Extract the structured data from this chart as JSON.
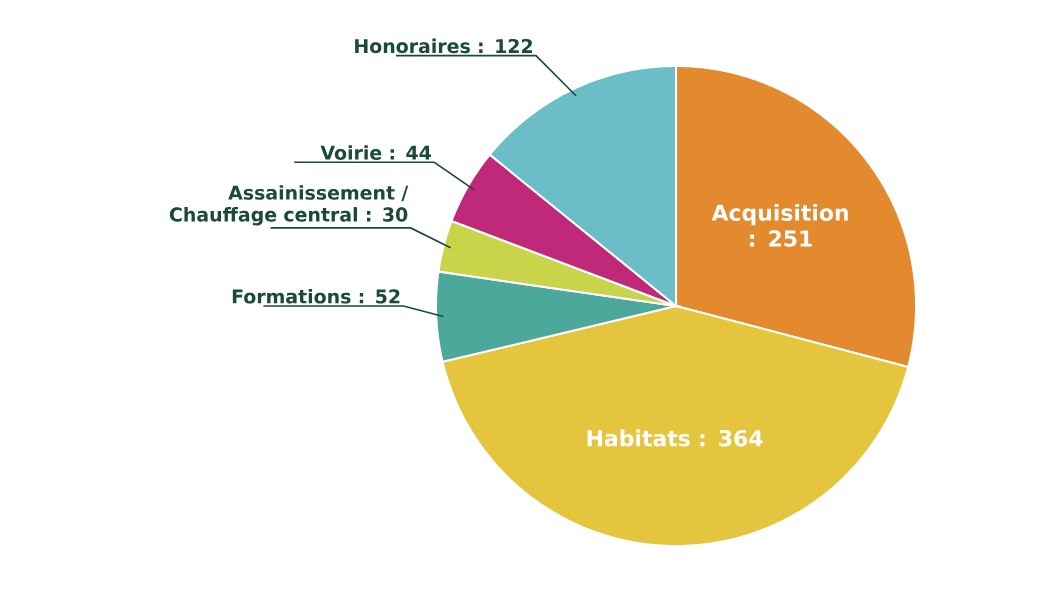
{
  "chart_data": {
    "type": "pie",
    "categories": [
      "Acquisition",
      "Habitats",
      "Formations",
      "Assainissement / Chauffage central",
      "Voirie",
      "Honoraires"
    ],
    "values": [
      251,
      364,
      52,
      30,
      44,
      122
    ],
    "value_labels": [
      ": 251",
      ": 364",
      ": 52",
      ": 30",
      ": 44",
      ": 122"
    ],
    "colors": [
      "#e38a2e",
      "#e5c53e",
      "#4ba89b",
      "#c9d44a",
      "#c0287a",
      "#6bbdc8"
    ]
  }
}
